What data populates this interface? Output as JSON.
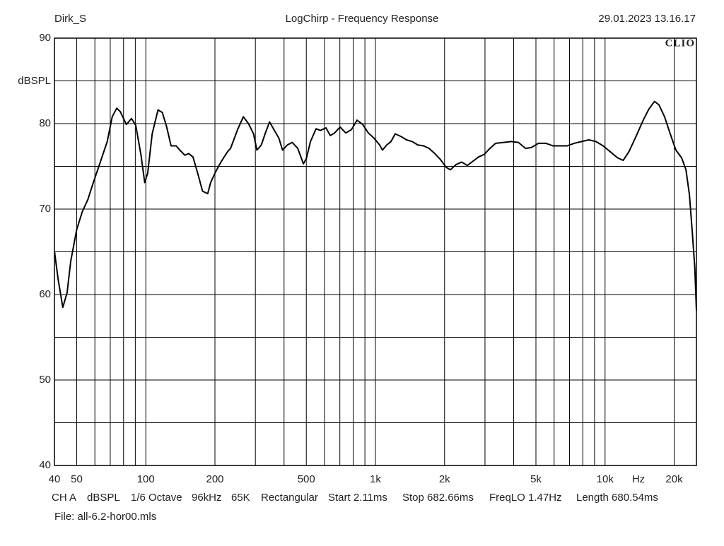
{
  "chart_data": {
    "type": "line",
    "author": "Dirk_S",
    "title": "LogChirp - Frequency Response",
    "timestamp": "29.01.2023 13.16.17",
    "logo": "CLIO",
    "ylabel": "dBSPL",
    "xlabel": "Hz",
    "xscale": "log",
    "grid": true,
    "xlim": [
      40,
      25000
    ],
    "ylim": [
      40,
      90
    ],
    "xticks": [
      40,
      50,
      100,
      200,
      500,
      {
        "value": 1000,
        "label": "1k"
      },
      {
        "value": 2000,
        "label": "2k"
      },
      {
        "value": 5000,
        "label": "5k"
      },
      {
        "value": 10000,
        "label": "10k"
      },
      {
        "value": 20000,
        "label": "20k"
      }
    ],
    "xminor": [
      60,
      70,
      80,
      90,
      300,
      400,
      600,
      700,
      800,
      900,
      3000,
      4000,
      6000,
      7000,
      8000,
      9000
    ],
    "yticks": [
      40,
      50,
      60,
      70,
      80,
      90
    ],
    "yminor": [
      45,
      55,
      65,
      75,
      85
    ],
    "x": [
      40,
      41.5,
      43.5,
      45.4,
      47.1,
      50,
      52.9,
      55.9,
      58.9,
      63,
      67.9,
      71.4,
      74.7,
      77.4,
      82.3,
      86.6,
      90.4,
      95.3,
      98.9,
      101.9,
      106.6,
      113,
      118,
      123.3,
      128.8,
      135.6,
      140.6,
      148,
      153.6,
      160.5,
      169,
      176.6,
      186,
      191.6,
      200,
      212.3,
      226.8,
      233.9,
      251,
      265.9,
      280,
      294.6,
      304.6,
      318.5,
      330.6,
      345.8,
      361.4,
      379.8,
      393.9,
      413.5,
      433.8,
      458.8,
      485.6,
      500,
      521.3,
      551.5,
      575.5,
      609,
      635.7,
      663.6,
      702,
      742.7,
      786,
      831.6,
      880,
      931.6,
      985.9,
      1043,
      1073,
      1120,
      1169,
      1219,
      1290,
      1366,
      1445,
      1530,
      1619,
      1713,
      1813,
      1919,
      2031,
      2119,
      2243,
      2373,
      2512,
      2659,
      2814,
      2978,
      3152,
      3336,
      3630,
      3902,
      4193,
      4507,
      4775,
      5131,
      5515,
      5926,
      6368,
      6844,
      7355,
      7904,
      8494,
      9129,
      9810,
      10542,
      11330,
      11993,
      12694,
      13642,
      14660,
      15517,
      16424,
      17163,
      18164,
      19227,
      20350,
      21540,
      22510,
      23300,
      24000,
      24600,
      25000
    ],
    "series": [
      {
        "color": "#000000",
        "values": [
          65.1,
          61.8,
          58.5,
          60.2,
          63.9,
          67.6,
          69.7,
          71.1,
          73,
          75.3,
          77.9,
          80.8,
          81.8,
          81.4,
          79.9,
          80.6,
          79.8,
          76.3,
          73.1,
          74.2,
          78.8,
          81.6,
          81.3,
          79.6,
          77.4,
          77.4,
          76.9,
          76.3,
          76.5,
          76.1,
          74,
          72.1,
          71.8,
          73.1,
          74.2,
          75.5,
          76.7,
          77.1,
          79.3,
          80.8,
          80,
          78.8,
          76.9,
          77.5,
          78.8,
          80.2,
          79.3,
          78.3,
          76.9,
          77.5,
          77.8,
          77.1,
          75.3,
          75.9,
          77.9,
          79.4,
          79.2,
          79.5,
          78.6,
          78.9,
          79.6,
          78.9,
          79.3,
          80.4,
          79.9,
          78.9,
          78.3,
          77.5,
          76.9,
          77.5,
          77.9,
          78.8,
          78.5,
          78.1,
          77.9,
          77.5,
          77.4,
          77.1,
          76.5,
          75.8,
          74.9,
          74.6,
          75.2,
          75.5,
          75.1,
          75.6,
          76.1,
          76.4,
          77.1,
          77.7,
          77.8,
          77.9,
          77.8,
          77.1,
          77.2,
          77.7,
          77.7,
          77.4,
          77.4,
          77.4,
          77.7,
          77.9,
          78.1,
          77.9,
          77.4,
          76.7,
          76,
          75.7,
          76.7,
          78.5,
          80.4,
          81.7,
          82.6,
          82.2,
          80.8,
          78.8,
          76.9,
          76,
          74.6,
          71.7,
          67.2,
          63.1,
          58.1
        ]
      }
    ],
    "settings": [
      "CH A",
      "dBSPL",
      "1/6 Octave",
      "96kHz",
      "65K",
      "Rectangular",
      "Start 2.11ms",
      "Stop 682.66ms",
      "FreqLO 1.47Hz",
      "Length 680.54ms"
    ],
    "file": "File: all-6.2-hor00.mls"
  }
}
